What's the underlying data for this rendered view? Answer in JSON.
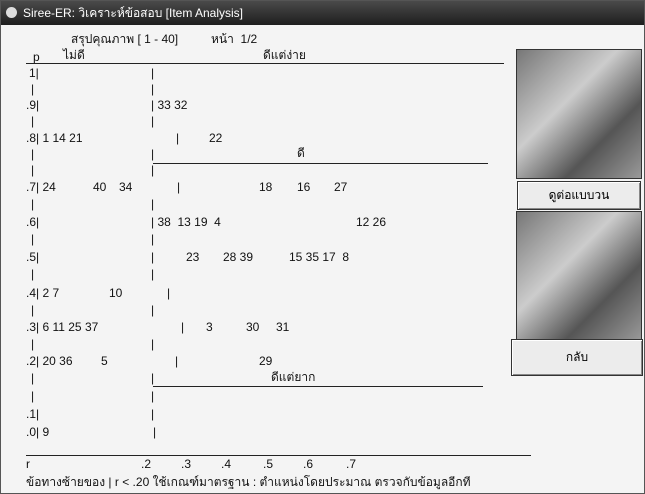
{
  "window": {
    "title": "Siree-ER: วิเคราะห์ข้อสอบ [Item Analysis]"
  },
  "header": {
    "summary": "สรุปคุณภาพ [ 1 - 40]",
    "page": "หน้า  1/2"
  },
  "zones": {
    "p": "p",
    "bad": "ไม่ดี",
    "good_easy": "ดีแต่ง่าย",
    "good": "ดี",
    "good_hard": "ดีแต่ยาก"
  },
  "plot": {
    "rows": [
      [
        "1|",
        "|"
      ],
      [
        "|",
        "|"
      ],
      [
        ".9|",
        "| 33 32"
      ],
      [
        "|",
        "|"
      ],
      [
        ".8| 1 14 21",
        "|",
        "22"
      ],
      [
        "|",
        "|"
      ],
      [
        "|",
        "|"
      ],
      [
        ".7| 24",
        "40",
        "34",
        "|",
        "18",
        "16",
        "27"
      ],
      [
        "|",
        "|"
      ],
      [
        ".6|",
        "| 38  13 19  4",
        "12 26"
      ],
      [
        "|",
        "|"
      ],
      [
        ".5|",
        "|",
        "23",
        "28 39",
        "15 35 17  8"
      ],
      [
        "|",
        "|"
      ],
      [
        ".4| 2 7",
        "10",
        "|"
      ],
      [
        "|",
        "|"
      ],
      [
        ".3| 6 11 25 37",
        "|",
        "3",
        "30",
        "31"
      ],
      [
        "|",
        "|"
      ],
      [
        ".2| 20 36",
        "5",
        "|",
        "29"
      ],
      [
        "|",
        "|"
      ],
      [
        "|",
        "|"
      ],
      [
        ".1|",
        "|"
      ],
      [
        ".0| 9",
        "|"
      ]
    ],
    "axis": [
      "r",
      ".2",
      ".3",
      ".4",
      ".5",
      ".6",
      ".7"
    ]
  },
  "footer": {
    "note": "ข้อทางซ้ายของ | r < .20 ใช้เกณฑ์มาตรฐาน : ตำแหน่งโดยประมาณ ตรวจกับข้อมูลอีกที"
  },
  "buttons": {
    "next": "ดูต่อแบบวน",
    "back": "กลับ"
  }
}
